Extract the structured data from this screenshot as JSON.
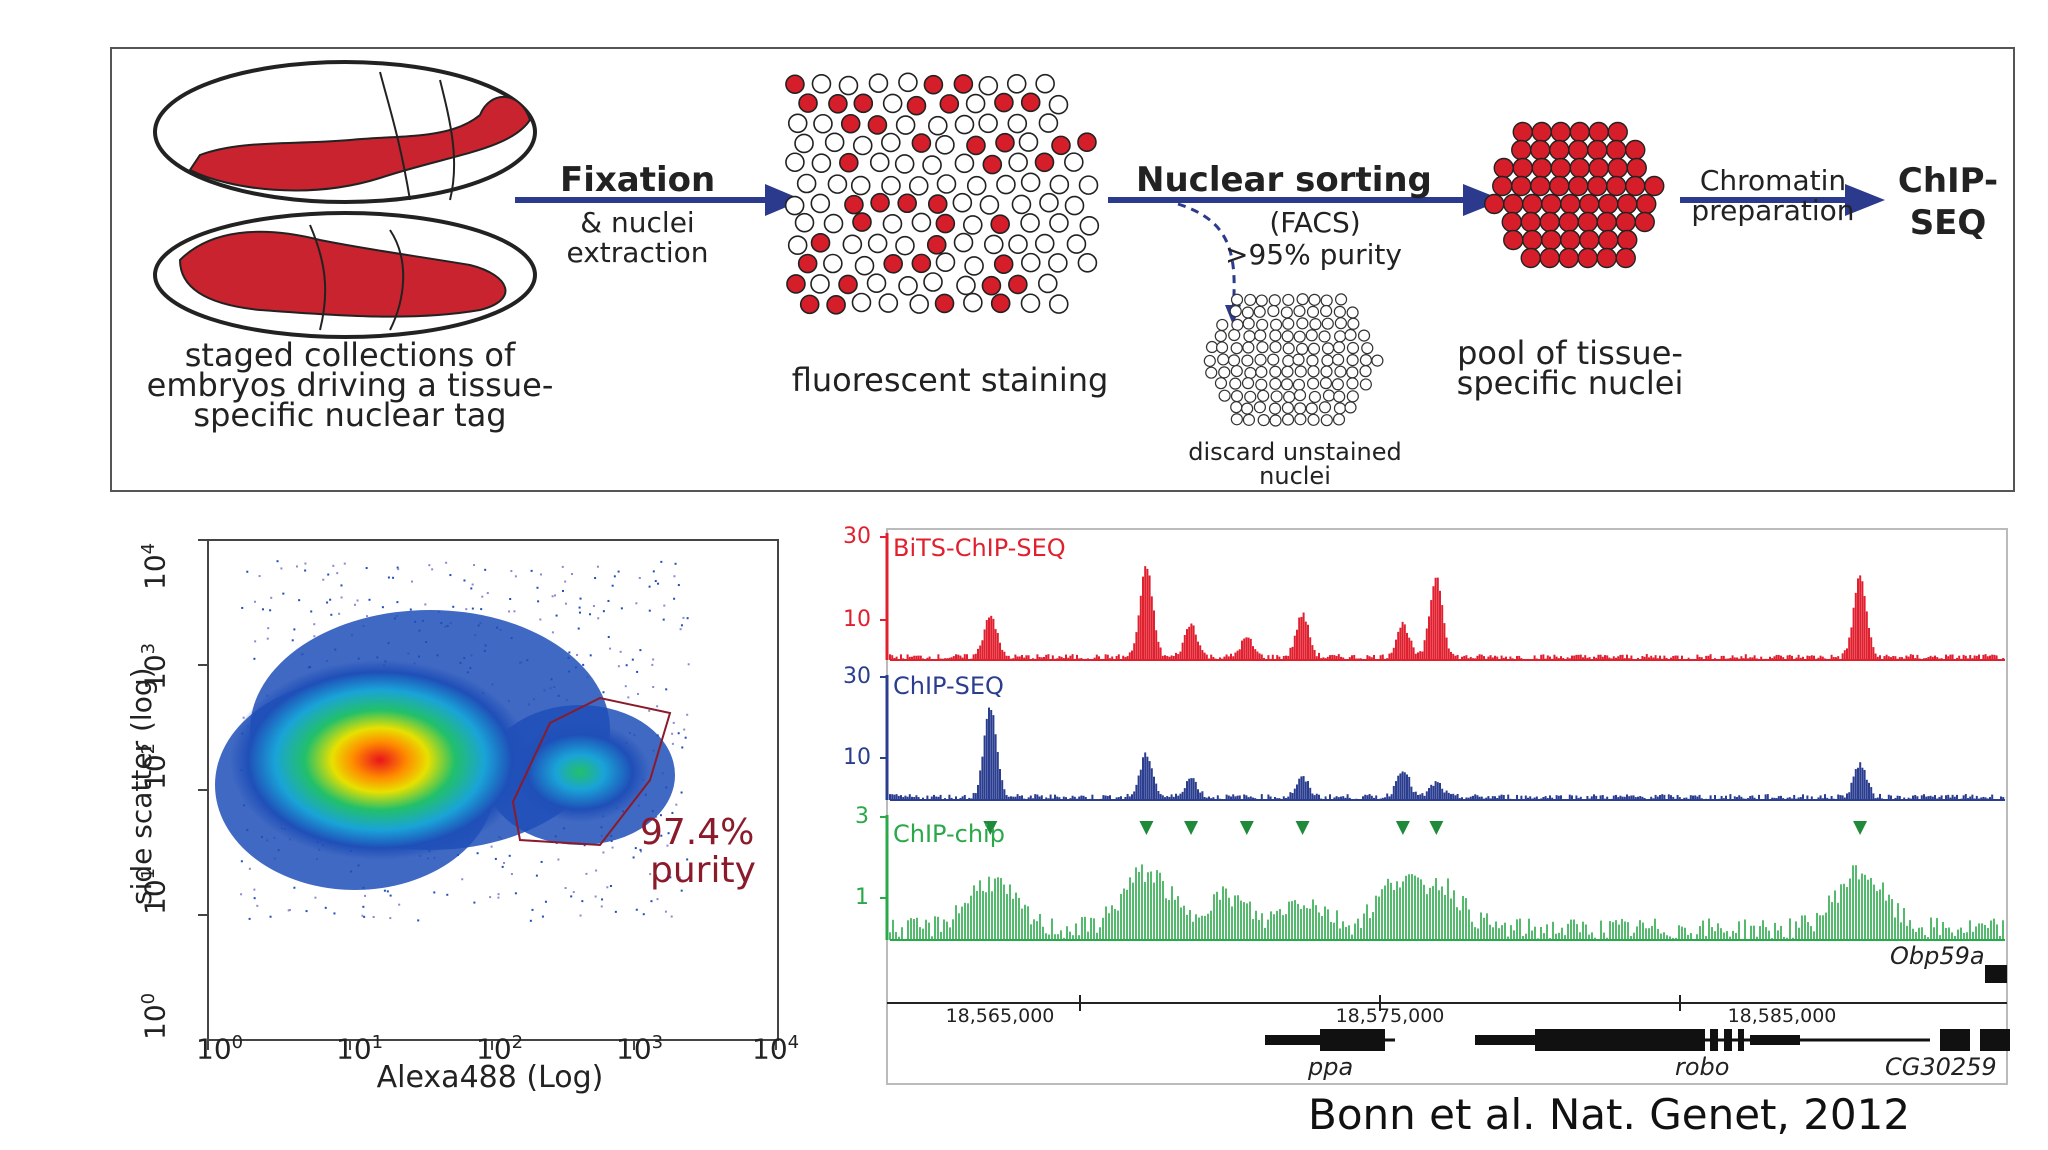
{
  "workflow": {
    "step1_caption": "staged collections of embryos driving a tissue-specific nuclear tag",
    "arrow1_title": "Fixation",
    "arrow1_sub": "& nuclei extraction",
    "step2_caption": "fluorescent staining",
    "arrow2_title": "Nuclear sorting",
    "arrow2_sub1": "(FACS)",
    "arrow2_sub2": ">95% purity",
    "discard_caption": "discard unstained nuclei",
    "step3_caption": "pool of tissue-specific nuclei",
    "arrow3_label": "Chromatin preparation",
    "final_label": "ChIP-SEQ",
    "colors": {
      "stained": "#d61e2a",
      "arrow": "#2b3a8c",
      "outline": "#222222"
    }
  },
  "facs_plot": {
    "ylabel": "side scatter (log)",
    "xlabel": "Alexa488 (Log)",
    "x_ticks": [
      "10",
      "10",
      "10",
      "10",
      "10"
    ],
    "x_tick_exp": [
      "0",
      "1",
      "2",
      "3",
      "4"
    ],
    "y_ticks": [
      "10",
      "10",
      "10",
      "10",
      "10"
    ],
    "y_tick_exp": [
      "0",
      "1",
      "2",
      "3",
      "4"
    ],
    "gate_value": "97.4%",
    "gate_label": "purity",
    "gate_color": "#8b1a2b"
  },
  "chart_data": {
    "type": "area",
    "x_ticks": [
      "18,565,000",
      "18,575,000",
      "18,585,000"
    ],
    "tracks": [
      {
        "name": "BiTS-ChIP-SEQ",
        "color": "#e0202e",
        "ymax": "30",
        "ymid": "10"
      },
      {
        "name": "ChIP-SEQ",
        "color": "#2a3d8f",
        "ymax": "30",
        "ymid": "10"
      },
      {
        "name": "ChIP-chip",
        "color": "#2aa84a",
        "ymax": "3",
        "ymid": "1"
      }
    ],
    "peaks_x_fraction": [
      0.09,
      0.23,
      0.27,
      0.32,
      0.37,
      0.46,
      0.49,
      0.87
    ],
    "genes": [
      "ppa",
      "robo",
      "CG30259",
      "Obp59a"
    ]
  },
  "citation": "Bonn et al. Nat. Genet, 2012"
}
